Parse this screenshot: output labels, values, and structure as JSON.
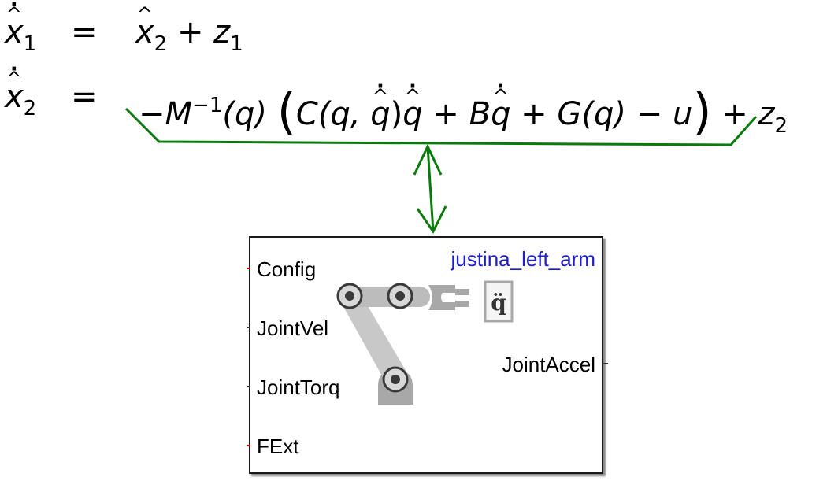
{
  "equation1": {
    "lhs_var": "x",
    "lhs_sub": "1",
    "eq_sign": "=",
    "rhs_var": "x",
    "rhs_sub": "2",
    "plus": "+",
    "rhs_term": "z",
    "rhs_term_sub": "1"
  },
  "equation2": {
    "lhs_var": "x",
    "lhs_sub": "2",
    "eq_sign": "=",
    "neg": "−",
    "M": "M",
    "M_sup": "−1",
    "q_arg": "(q)",
    "open_paren": "(",
    "C": "C",
    "C_open": "(q, ",
    "C_qdot": "q",
    "C_close": ")",
    "C_times": "q",
    "plus1": "+",
    "B": "B",
    "B_qdot": "q",
    "plus2": "+",
    "G": "G(q)",
    "minus": "−",
    "u": "u",
    "close_paren": ")",
    "plus3": "+",
    "z": "z",
    "z_sub": "2"
  },
  "block": {
    "title": "justina_left_arm",
    "input_ports": [
      "Config",
      "JointVel",
      "JointTorq",
      "FExt"
    ],
    "output_ports": [
      "JointAccel"
    ],
    "icon_symbol": "q̈",
    "title_color": "#1e1ec8"
  },
  "colors": {
    "annotation": "#0a7a0a",
    "border": "#1a1a1a",
    "robot_gray": "#a8a8a8",
    "robot_dark": "#3a3a3a"
  }
}
